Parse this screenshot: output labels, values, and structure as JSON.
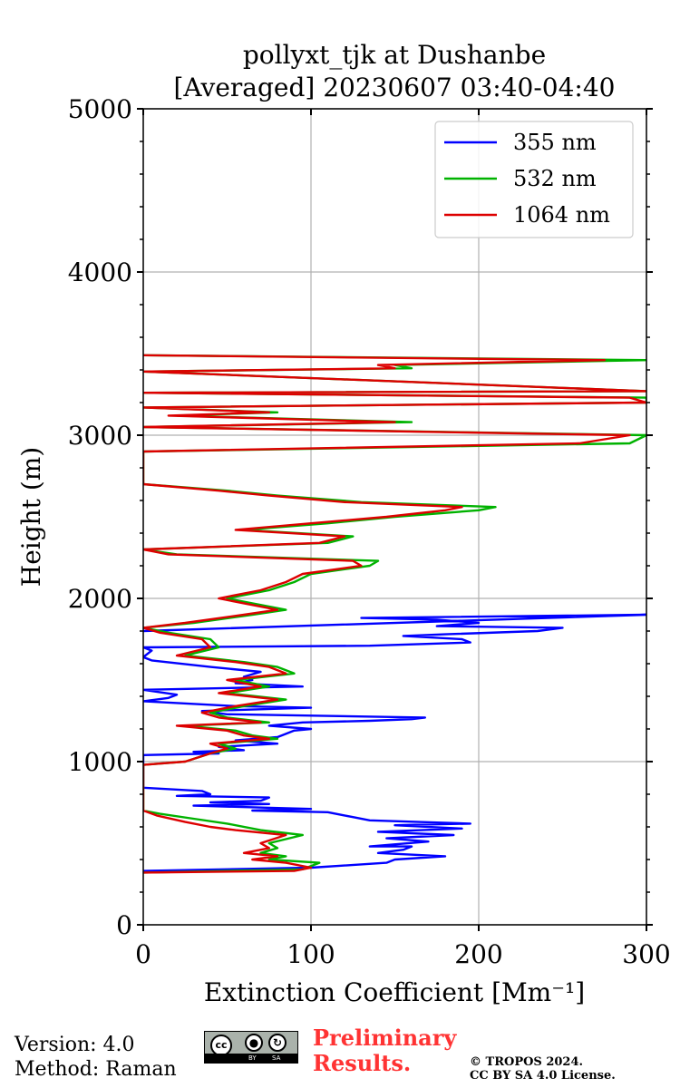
{
  "chart_data": {
    "type": "line",
    "title_line1": "pollyxt_tjk at Dushanbe",
    "title_line2": "[Averaged] 20230607 03:40-04:40",
    "xlabel": "Extinction Coefficient [Mm⁻¹]",
    "ylabel": "Height (m)",
    "xlim": [
      0,
      300
    ],
    "ylim": [
      0,
      5000
    ],
    "x_ticks": [
      "0",
      "100",
      "200",
      "300"
    ],
    "y_ticks": [
      "0",
      "1000",
      "2000",
      "3000",
      "4000",
      "5000"
    ],
    "grid": true,
    "legend_position": "top-right",
    "series": [
      {
        "name": "355 nm",
        "color": "#0000ff",
        "points": [
          [
            0,
            330
          ],
          [
            100,
            350
          ],
          [
            145,
            380
          ],
          [
            150,
            400
          ],
          [
            180,
            420
          ],
          [
            140,
            440
          ],
          [
            155,
            460
          ],
          [
            160,
            480
          ],
          [
            135,
            480
          ],
          [
            170,
            510
          ],
          [
            145,
            530
          ],
          [
            185,
            550
          ],
          [
            140,
            570
          ],
          [
            190,
            590
          ],
          [
            150,
            610
          ],
          [
            195,
            620
          ],
          [
            135,
            640
          ],
          [
            125,
            660
          ],
          [
            120,
            670
          ],
          [
            110,
            690
          ],
          [
            65,
            700
          ],
          [
            100,
            710
          ],
          [
            30,
            730
          ],
          [
            75,
            740
          ],
          [
            40,
            750
          ],
          [
            70,
            760
          ],
          [
            75,
            780
          ],
          [
            20,
            790
          ],
          [
            40,
            800
          ],
          [
            35,
            820
          ],
          [
            0,
            840
          ],
          [
            0,
            1040
          ],
          [
            45,
            1050
          ],
          [
            30,
            1060
          ],
          [
            60,
            1070
          ],
          [
            45,
            1090
          ],
          [
            80,
            1110
          ],
          [
            55,
            1130
          ],
          [
            80,
            1150
          ],
          [
            85,
            1170
          ],
          [
            90,
            1190
          ],
          [
            100,
            1200
          ],
          [
            75,
            1220
          ],
          [
            95,
            1240
          ],
          [
            135,
            1250
          ],
          [
            160,
            1260
          ],
          [
            168,
            1270
          ],
          [
            50,
            1290
          ],
          [
            35,
            1310
          ],
          [
            100,
            1330
          ],
          [
            55,
            1340
          ],
          [
            0,
            1370
          ],
          [
            15,
            1390
          ],
          [
            20,
            1410
          ],
          [
            0,
            1440
          ],
          [
            95,
            1460
          ],
          [
            55,
            1480
          ],
          [
            65,
            1500
          ],
          [
            60,
            1520
          ],
          [
            70,
            1550
          ],
          [
            40,
            1580
          ],
          [
            5,
            1620
          ],
          [
            0,
            1640
          ],
          [
            5,
            1680
          ],
          [
            0,
            1700
          ],
          [
            135,
            1710
          ],
          [
            195,
            1730
          ],
          [
            190,
            1750
          ],
          [
            155,
            1770
          ],
          [
            180,
            1780
          ],
          [
            235,
            1800
          ],
          [
            250,
            1820
          ],
          [
            175,
            1830
          ],
          [
            200,
            1850
          ],
          [
            175,
            1870
          ],
          [
            130,
            1880
          ],
          [
            300,
            1900
          ],
          [
            0,
            1800
          ]
        ]
      },
      {
        "name": "532 nm",
        "color": "#00b200",
        "points": [
          [
            0,
            320
          ],
          [
            95,
            340
          ],
          [
            105,
            380
          ],
          [
            75,
            400
          ],
          [
            85,
            420
          ],
          [
            70,
            440
          ],
          [
            80,
            470
          ],
          [
            75,
            500
          ],
          [
            95,
            550
          ],
          [
            70,
            580
          ],
          [
            50,
            620
          ],
          [
            30,
            650
          ],
          [
            10,
            680
          ],
          [
            0,
            700
          ],
          [
            0,
            980
          ],
          [
            25,
            1000
          ],
          [
            40,
            1050
          ],
          [
            55,
            1080
          ],
          [
            45,
            1110
          ],
          [
            80,
            1140
          ],
          [
            65,
            1160
          ],
          [
            55,
            1190
          ],
          [
            25,
            1220
          ],
          [
            75,
            1240
          ],
          [
            50,
            1270
          ],
          [
            40,
            1300
          ],
          [
            60,
            1340
          ],
          [
            85,
            1380
          ],
          [
            50,
            1420
          ],
          [
            75,
            1460
          ],
          [
            55,
            1500
          ],
          [
            90,
            1540
          ],
          [
            80,
            1580
          ],
          [
            60,
            1610
          ],
          [
            25,
            1650
          ],
          [
            45,
            1700
          ],
          [
            40,
            1750
          ],
          [
            15,
            1790
          ],
          [
            0,
            1820
          ],
          [
            30,
            1850
          ],
          [
            65,
            1900
          ],
          [
            85,
            1930
          ],
          [
            65,
            1970
          ],
          [
            50,
            2000
          ],
          [
            75,
            2050
          ],
          [
            90,
            2100
          ],
          [
            100,
            2150
          ],
          [
            135,
            2200
          ],
          [
            140,
            2230
          ],
          [
            20,
            2270
          ],
          [
            0,
            2300
          ],
          [
            110,
            2340
          ],
          [
            125,
            2380
          ],
          [
            60,
            2420
          ],
          [
            110,
            2460
          ],
          [
            150,
            2500
          ],
          [
            200,
            2540
          ],
          [
            210,
            2560
          ],
          [
            130,
            2590
          ],
          [
            80,
            2630
          ],
          [
            50,
            2660
          ],
          [
            0,
            2700
          ],
          [
            0,
            2900
          ],
          [
            290,
            2950
          ],
          [
            300,
            3000
          ],
          [
            0,
            3050
          ],
          [
            160,
            3080
          ],
          [
            20,
            3120
          ],
          [
            80,
            3140
          ],
          [
            0,
            3170
          ],
          [
            300,
            3200
          ],
          [
            300,
            3230
          ],
          [
            0,
            3260
          ],
          [
            300,
            3270
          ],
          [
            0,
            3390
          ],
          [
            160,
            3410
          ],
          [
            150,
            3430
          ],
          [
            300,
            3460
          ],
          [
            0,
            3490
          ]
        ]
      },
      {
        "name": "1064 nm",
        "color": "#dd0000",
        "points": [
          [
            0,
            320
          ],
          [
            90,
            330
          ],
          [
            100,
            350
          ],
          [
            85,
            380
          ],
          [
            65,
            400
          ],
          [
            80,
            420
          ],
          [
            60,
            440
          ],
          [
            75,
            470
          ],
          [
            70,
            500
          ],
          [
            85,
            550
          ],
          [
            55,
            580
          ],
          [
            40,
            600
          ],
          [
            25,
            630
          ],
          [
            8,
            670
          ],
          [
            0,
            700
          ],
          [
            0,
            980
          ],
          [
            25,
            1000
          ],
          [
            40,
            1050
          ],
          [
            50,
            1080
          ],
          [
            40,
            1110
          ],
          [
            75,
            1140
          ],
          [
            60,
            1160
          ],
          [
            50,
            1190
          ],
          [
            20,
            1220
          ],
          [
            70,
            1240
          ],
          [
            45,
            1270
          ],
          [
            35,
            1300
          ],
          [
            55,
            1340
          ],
          [
            80,
            1380
          ],
          [
            45,
            1420
          ],
          [
            70,
            1460
          ],
          [
            50,
            1500
          ],
          [
            85,
            1540
          ],
          [
            75,
            1580
          ],
          [
            55,
            1610
          ],
          [
            20,
            1650
          ],
          [
            40,
            1700
          ],
          [
            35,
            1750
          ],
          [
            10,
            1790
          ],
          [
            0,
            1820
          ],
          [
            25,
            1850
          ],
          [
            60,
            1900
          ],
          [
            80,
            1930
          ],
          [
            60,
            1970
          ],
          [
            45,
            2000
          ],
          [
            70,
            2050
          ],
          [
            85,
            2100
          ],
          [
            95,
            2150
          ],
          [
            130,
            2200
          ],
          [
            125,
            2230
          ],
          [
            15,
            2270
          ],
          [
            0,
            2300
          ],
          [
            105,
            2340
          ],
          [
            120,
            2380
          ],
          [
            55,
            2420
          ],
          [
            100,
            2460
          ],
          [
            145,
            2500
          ],
          [
            180,
            2540
          ],
          [
            190,
            2560
          ],
          [
            120,
            2590
          ],
          [
            75,
            2630
          ],
          [
            45,
            2660
          ],
          [
            0,
            2700
          ],
          [
            0,
            2900
          ],
          [
            260,
            2950
          ],
          [
            290,
            3000
          ],
          [
            0,
            3050
          ],
          [
            150,
            3080
          ],
          [
            15,
            3120
          ],
          [
            75,
            3140
          ],
          [
            0,
            3170
          ],
          [
            300,
            3200
          ],
          [
            290,
            3230
          ],
          [
            0,
            3260
          ],
          [
            300,
            3270
          ],
          [
            0,
            3390
          ],
          [
            150,
            3410
          ],
          [
            140,
            3430
          ],
          [
            275,
            3460
          ],
          [
            0,
            3490
          ]
        ]
      }
    ]
  },
  "footer": {
    "version": "Version: 4.0",
    "method": "Method: Raman",
    "preliminary_line1": "Preliminary",
    "preliminary_line2": "Results.",
    "preliminary_color": "#ff3333",
    "copyright_line1": "© TROPOS 2024.",
    "copyright_line2": "CC BY SA 4.0 License.",
    "cc_badge": {
      "cc": "cc",
      "by_icon": "person-icon",
      "sa_icon": "share-alike-icon",
      "by": "BY",
      "sa": "SA"
    }
  }
}
